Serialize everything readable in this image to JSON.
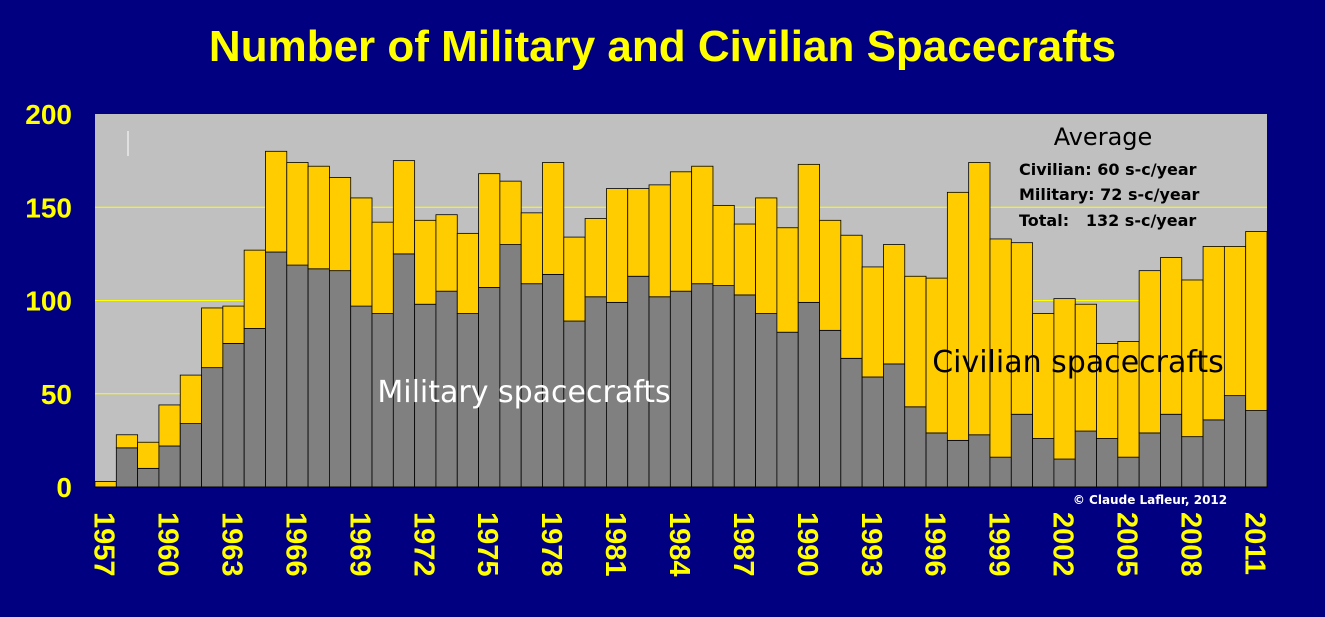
{
  "title": "Number of Military and Civilian Spacecrafts",
  "colors": {
    "background": "#000080",
    "plot_area": "#c0c0c0",
    "military": "#808080",
    "civilian": "#ffcc00",
    "text": "#ffff00",
    "gridline": "#ffff00"
  },
  "annotations": {
    "average_title": "Average",
    "civilian_avg": "Civilian: 60 s-c/year",
    "military_avg": "Military: 72 s-c/year",
    "total_avg": "Total:   132 s-c/year",
    "military_label": "Military spacecrafts",
    "civilian_label": "Civilian spacecrafts",
    "copyright": "© Claude Lafleur, 2012"
  },
  "chart_data": {
    "type": "bar",
    "stacked": true,
    "title": "Number of Military and Civilian Spacecrafts",
    "xlabel": "",
    "ylabel": "",
    "ylim": [
      0,
      200
    ],
    "yticks": [
      0,
      50,
      100,
      150,
      200
    ],
    "grid": true,
    "categories": [
      1957,
      1958,
      1959,
      1960,
      1961,
      1962,
      1963,
      1964,
      1965,
      1966,
      1967,
      1968,
      1969,
      1970,
      1971,
      1972,
      1973,
      1974,
      1975,
      1976,
      1977,
      1978,
      1979,
      1980,
      1981,
      1982,
      1983,
      1984,
      1985,
      1986,
      1987,
      1988,
      1989,
      1990,
      1991,
      1992,
      1993,
      1994,
      1995,
      1996,
      1997,
      1998,
      1999,
      2000,
      2001,
      2002,
      2003,
      2004,
      2005,
      2006,
      2007,
      2008,
      2009,
      2010,
      2011
    ],
    "xtick_labels": [
      "1957",
      "1960",
      "1963",
      "1966",
      "1969",
      "1972",
      "1975",
      "1978",
      "1981",
      "1984",
      "1987",
      "1990",
      "1993",
      "1996",
      "1999",
      "2002",
      "2005",
      "2008",
      "2011"
    ],
    "series": [
      {
        "name": "Military spacecrafts",
        "color": "#808080",
        "values": [
          0,
          21,
          10,
          22,
          34,
          64,
          77,
          85,
          126,
          119,
          117,
          116,
          97,
          93,
          125,
          98,
          105,
          93,
          107,
          130,
          109,
          114,
          89,
          102,
          99,
          113,
          102,
          105,
          109,
          108,
          103,
          93,
          83,
          99,
          84,
          69,
          59,
          66,
          43,
          29,
          25,
          28,
          16,
          39,
          26,
          15,
          30,
          26,
          16,
          29,
          39,
          27,
          36,
          49,
          41
        ]
      },
      {
        "name": "Civilian spacecrafts",
        "color": "#ffcc00",
        "values": [
          3,
          7,
          14,
          22,
          26,
          32,
          20,
          42,
          54,
          55,
          55,
          50,
          58,
          49,
          50,
          45,
          41,
          43,
          61,
          34,
          38,
          60,
          45,
          42,
          61,
          47,
          60,
          64,
          63,
          43,
          38,
          62,
          56,
          74,
          59,
          66,
          59,
          64,
          70,
          83,
          133,
          146,
          117,
          92,
          67,
          86,
          68,
          51,
          62,
          87,
          84,
          84,
          93,
          80,
          96
        ]
      }
    ]
  }
}
